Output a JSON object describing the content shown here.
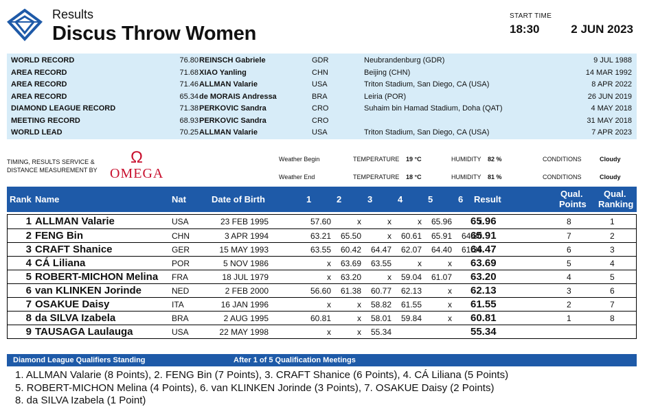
{
  "header": {
    "results_label": "Results",
    "event_title": "Discus Throw Women",
    "start_time_label": "START TIME",
    "start_time": "18:30",
    "date": "2 JUN 2023"
  },
  "records": [
    {
      "type": "WORLD RECORD",
      "value": "76.80",
      "name": "REINSCH Gabriele",
      "nat": "GDR",
      "venue": "Neubrandenburg (GDR)",
      "date": "9 JUL 1988"
    },
    {
      "type": "AREA RECORD",
      "value": "71.68",
      "name": "XIAO Yanling",
      "nat": "CHN",
      "venue": "Beijing (CHN)",
      "date": "14 MAR 1992"
    },
    {
      "type": "AREA RECORD",
      "value": "71.46",
      "name": "ALLMAN Valarie",
      "nat": "USA",
      "venue": "Triton Stadium, San Diego, CA (USA)",
      "date": "8 APR 2022"
    },
    {
      "type": "AREA RECORD",
      "value": "65.34",
      "name": "de MORAIS Andressa",
      "nat": "BRA",
      "venue": "Leiria (POR)",
      "date": "26 JUN 2019"
    },
    {
      "type": "DIAMOND LEAGUE RECORD",
      "value": "71.38",
      "name": "PERKOVIC Sandra",
      "nat": "CRO",
      "venue": "Suhaim bin Hamad Stadium, Doha (QAT)",
      "date": "4 MAY 2018"
    },
    {
      "type": "MEETING RECORD",
      "value": "68.93",
      "name": "PERKOVIC Sandra",
      "nat": "CRO",
      "venue": "",
      "date": "31 MAY 2018"
    },
    {
      "type": "WORLD LEAD",
      "value": "70.25",
      "name": "ALLMAN Valarie",
      "nat": "USA",
      "venue": "Triton Stadium, San Diego, CA (USA)",
      "date": "7 APR 2023"
    }
  ],
  "timing": {
    "line1": "TIMING, RESULTS SERVICE &",
    "line2": "DISTANCE MEASUREMENT BY",
    "brand": "OMEGA"
  },
  "weather": {
    "begin_label": "Weather Begin",
    "end_label": "Weather End",
    "temp_label": "TEMPERATURE",
    "humidity_label": "HUMIDITY",
    "conditions_label": "CONDITIONS",
    "begin_temp": "19 °C",
    "begin_humidity": "82 %",
    "begin_conditions": "Cloudy",
    "end_temp": "18 °C",
    "end_humidity": "81 %",
    "end_conditions": "Cloudy"
  },
  "columns": {
    "rank": "Rank",
    "name": "Name",
    "nat": "Nat",
    "dob": "Date of Birth",
    "a1": "1",
    "a2": "2",
    "a3": "3",
    "a4": "4",
    "a5": "5",
    "a6": "6",
    "result": "Result",
    "qp1": "Qual.",
    "qp2": "Points",
    "qr1": "Qual.",
    "qr2": "Ranking"
  },
  "athletes": [
    {
      "rank": "1",
      "name": "ALLMAN Valarie",
      "nat": "USA",
      "dob": "23 FEB 1995",
      "attempts": [
        "57.60",
        "x",
        "x",
        "x",
        "65.96",
        "x"
      ],
      "result": "65.96",
      "qp": "8",
      "qr": "1"
    },
    {
      "rank": "2",
      "name": "FENG Bin",
      "nat": "CHN",
      "dob": "3 APR 1994",
      "attempts": [
        "63.21",
        "65.50",
        "x",
        "60.61",
        "65.91",
        "64.80"
      ],
      "result": "65.91",
      "qp": "7",
      "qr": "2"
    },
    {
      "rank": "3",
      "name": "CRAFT Shanice",
      "nat": "GER",
      "dob": "15 MAY 1993",
      "attempts": [
        "63.55",
        "60.42",
        "64.47",
        "62.07",
        "64.40",
        "61.36"
      ],
      "result": "64.47",
      "qp": "6",
      "qr": "3"
    },
    {
      "rank": "4",
      "name": "CÁ Liliana",
      "nat": "POR",
      "dob": "5 NOV 1986",
      "attempts": [
        "x",
        "63.69",
        "63.55",
        "x",
        "x",
        ""
      ],
      "result": "63.69",
      "qp": "5",
      "qr": "4"
    },
    {
      "rank": "5",
      "name": "ROBERT-MICHON Melina",
      "nat": "FRA",
      "dob": "18 JUL 1979",
      "attempts": [
        "x",
        "63.20",
        "x",
        "59.04",
        "61.07",
        ""
      ],
      "result": "63.20",
      "qp": "4",
      "qr": "5"
    },
    {
      "rank": "6",
      "name": "van KLINKEN Jorinde",
      "nat": "NED",
      "dob": "2 FEB 2000",
      "attempts": [
        "56.60",
        "61.38",
        "60.77",
        "62.13",
        "x",
        ""
      ],
      "result": "62.13",
      "qp": "3",
      "qr": "6"
    },
    {
      "rank": "7",
      "name": "OSAKUE Daisy",
      "nat": "ITA",
      "dob": "16 JAN 1996",
      "attempts": [
        "x",
        "x",
        "58.82",
        "61.55",
        "x",
        ""
      ],
      "result": "61.55",
      "qp": "2",
      "qr": "7"
    },
    {
      "rank": "8",
      "name": "da SILVA Izabela",
      "nat": "BRA",
      "dob": "2 AUG 1995",
      "attempts": [
        "60.81",
        "x",
        "58.01",
        "59.84",
        "x",
        ""
      ],
      "result": "60.81",
      "qp": "1",
      "qr": "8"
    },
    {
      "rank": "9",
      "name": "TAUSAGA Laulauga",
      "nat": "USA",
      "dob": "22 MAY 1998",
      "attempts": [
        "x",
        "x",
        "55.34",
        "",
        "",
        ""
      ],
      "result": "55.34",
      "qp": "",
      "qr": ""
    }
  ],
  "diamond_league": {
    "title": "Diamond League Qualifiers Standing",
    "subtitle": "After 1 of 5 Qualification Meetings",
    "lines": [
      "1. ALLMAN Valarie (8 Points), 2. FENG Bin (7 Points), 3. CRAFT Shanice (6 Points), 4. CÁ Liliana (5 Points)",
      "5. ROBERT-MICHON Melina (4 Points), 6. van KLINKEN Jorinde (3 Points), 7. OSAKUE Daisy (2 Points)",
      "8. da SILVA Izabela (1 Point)"
    ]
  },
  "colors": {
    "accent": "#1e5aa8",
    "records_bg": "#d7ecf8",
    "omega_red": "#c8102e"
  }
}
